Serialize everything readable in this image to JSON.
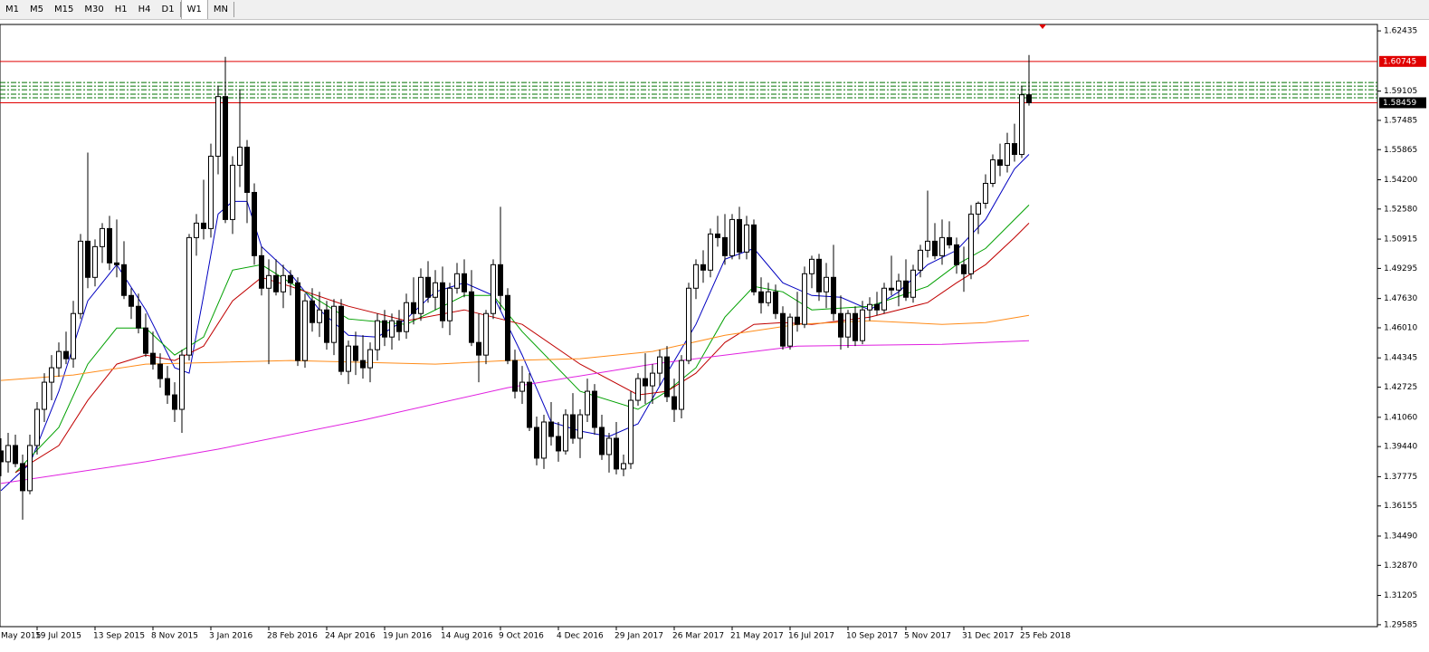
{
  "toolbar": {
    "timeframes": [
      "M1",
      "M5",
      "M15",
      "M30",
      "H1",
      "H4",
      "D1",
      "W1",
      "MN"
    ],
    "active": "W1"
  },
  "chart_data": {
    "type": "candlestick",
    "ylim": [
      1.2948,
      1.6279
    ],
    "yticks": [
      1.62435,
      1.59105,
      1.57485,
      1.55865,
      {
        "value": 1.542,
        "label": "1.54200"
      },
      {
        "value": 1.5258,
        "label": "1.52580"
      },
      1.50915,
      1.49295,
      {
        "value": 1.4763,
        "label": "1.47630"
      },
      {
        "value": 1.4601,
        "label": "1.46010"
      },
      1.44345,
      1.42725,
      {
        "value": 1.4106,
        "label": "1.41060"
      },
      {
        "value": 1.3944,
        "label": "1.39440"
      },
      1.37775,
      1.36155,
      {
        "value": 1.3449,
        "label": "1.34490"
      },
      {
        "value": 1.3287,
        "label": "1.32870"
      },
      1.31205,
      1.29585
    ],
    "xlim": [
      -0.125,
      190.125
    ],
    "xticks": [
      {
        "value": -3,
        "label": "May 2015"
      },
      {
        "value": 5,
        "label": "19 Jul 2015"
      },
      {
        "value": 13,
        "label": "13 Sep 2015"
      },
      {
        "value": 21,
        "label": "8 Nov 2015"
      },
      {
        "value": 29,
        "label": "3 Jan 2016"
      },
      {
        "value": 37,
        "label": "28 Feb 2016"
      },
      {
        "value": 45,
        "label": "24 Apr 2016"
      },
      {
        "value": 53,
        "label": "19 Jun 2016"
      },
      {
        "value": 61,
        "label": "14 Aug 2016"
      },
      {
        "value": 69,
        "label": "9 Oct 2016"
      },
      {
        "value": 77,
        "label": "4 Dec 2016"
      },
      {
        "value": 85,
        "label": "29 Jan 2017"
      },
      {
        "value": 93,
        "label": "26 Mar 2017"
      },
      {
        "value": 101,
        "label": "21 May 2017"
      },
      {
        "value": 109,
        "label": "16 Jul 2017"
      },
      {
        "value": 117,
        "label": "10 Sep 2017"
      },
      {
        "value": 125,
        "label": "5 Nov 2017"
      },
      {
        "value": 133,
        "label": "31 Dec 2017"
      },
      {
        "value": 141,
        "label": "25 Feb 2018"
      }
    ],
    "up_color": "#ffffff",
    "down_color": "#000000",
    "open": [
      1.392,
      1.386,
      1.395,
      1.385,
      1.37,
      1.395,
      1.415,
      1.43,
      1.438,
      1.447,
      1.443,
      1.468,
      1.508,
      1.488,
      1.505,
      1.515,
      1.496,
      1.495,
      1.478,
      1.472,
      1.46,
      1.446,
      1.44,
      1.432,
      1.423,
      1.415,
      1.445,
      1.51,
      1.518,
      1.515,
      1.555,
      1.588,
      1.52,
      1.55,
      1.56,
      1.535,
      1.5,
      1.482,
      1.489,
      1.48,
      1.489,
      1.485,
      1.442,
      1.475,
      1.463,
      1.47,
      1.452,
      1.472,
      1.436,
      1.45,
      1.442,
      1.438,
      1.448,
      1.464,
      1.455,
      1.464,
      1.458,
      1.474,
      1.468,
      1.488,
      1.477,
      1.485,
      1.464,
      1.482,
      1.49,
      1.48,
      1.452,
      1.445,
      1.468,
      1.495,
      1.478,
      1.442,
      1.425,
      1.43,
      1.405,
      1.388,
      1.408,
      1.4,
      1.392,
      1.412,
      1.399,
      1.412,
      1.425,
      1.405,
      1.39,
      1.399,
      1.382,
      1.385,
      1.42,
      1.432,
      1.428,
      1.435,
      1.444,
      1.422,
      1.415,
      1.442,
      1.482,
      1.495,
      1.492,
      1.512,
      1.51,
      1.5,
      1.52,
      1.502,
      1.517,
      1.48,
      1.474,
      1.48,
      1.468,
      1.45,
      1.466,
      1.462,
      1.49,
      1.498,
      1.48,
      1.488,
      1.468,
      1.455,
      1.468,
      1.453,
      1.47,
      1.473,
      1.47,
      1.482,
      1.481,
      1.486,
      1.477,
      1.492,
      1.503,
      1.508,
      1.5,
      1.51,
      1.506,
      1.495,
      1.49,
      1.523,
      1.529,
      1.54,
      1.553,
      1.55,
      1.562,
      1.556,
      1.589
    ],
    "high": [
      1.399,
      1.402,
      1.401,
      1.39,
      1.401,
      1.419,
      1.435,
      1.445,
      1.452,
      1.458,
      1.475,
      1.512,
      1.557,
      1.509,
      1.518,
      1.522,
      1.52,
      1.508,
      1.482,
      1.479,
      1.468,
      1.458,
      1.446,
      1.439,
      1.43,
      1.448,
      1.512,
      1.523,
      1.542,
      1.562,
      1.594,
      1.61,
      1.555,
      1.592,
      1.564,
      1.54,
      1.505,
      1.498,
      1.498,
      1.495,
      1.492,
      1.488,
      1.479,
      1.482,
      1.48,
      1.475,
      1.476,
      1.476,
      1.453,
      1.458,
      1.456,
      1.452,
      1.468,
      1.47,
      1.468,
      1.47,
      1.479,
      1.488,
      1.493,
      1.497,
      1.492,
      1.494,
      1.485,
      1.496,
      1.498,
      1.492,
      1.468,
      1.47,
      1.498,
      1.527,
      1.482,
      1.448,
      1.439,
      1.435,
      1.411,
      1.412,
      1.419,
      1.408,
      1.415,
      1.424,
      1.415,
      1.432,
      1.429,
      1.412,
      1.402,
      1.408,
      1.39,
      1.425,
      1.435,
      1.446,
      1.44,
      1.448,
      1.45,
      1.432,
      1.445,
      1.485,
      1.498,
      1.503,
      1.515,
      1.522,
      1.523,
      1.523,
      1.527,
      1.522,
      1.52,
      1.488,
      1.485,
      1.484,
      1.472,
      1.468,
      1.48,
      1.494,
      1.5,
      1.501,
      1.496,
      1.506,
      1.478,
      1.47,
      1.472,
      1.475,
      1.477,
      1.48,
      1.485,
      1.5,
      1.49,
      1.498,
      1.495,
      1.506,
      1.536,
      1.518,
      1.52,
      1.519,
      1.51,
      1.505,
      1.528,
      1.53,
      1.545,
      1.556,
      1.562,
      1.568,
      1.573,
      1.594,
      1.611
    ],
    "low": [
      1.378,
      1.38,
      1.383,
      1.354,
      1.368,
      1.39,
      1.408,
      1.42,
      1.433,
      1.44,
      1.438,
      1.465,
      1.482,
      1.483,
      1.496,
      1.492,
      1.488,
      1.476,
      1.465,
      1.457,
      1.444,
      1.437,
      1.427,
      1.418,
      1.408,
      1.402,
      1.442,
      1.5,
      1.509,
      1.51,
      1.545,
      1.518,
      1.512,
      1.538,
      1.518,
      1.495,
      1.478,
      1.44,
      1.478,
      1.471,
      1.478,
      1.439,
      1.438,
      1.458,
      1.455,
      1.448,
      1.445,
      1.434,
      1.429,
      1.434,
      1.432,
      1.43,
      1.442,
      1.45,
      1.448,
      1.453,
      1.454,
      1.462,
      1.464,
      1.474,
      1.47,
      1.46,
      1.456,
      1.479,
      1.477,
      1.45,
      1.43,
      1.44,
      1.465,
      1.47,
      1.44,
      1.421,
      1.418,
      1.403,
      1.384,
      1.382,
      1.395,
      1.386,
      1.39,
      1.396,
      1.388,
      1.408,
      1.401,
      1.387,
      1.38,
      1.379,
      1.378,
      1.382,
      1.417,
      1.418,
      1.418,
      1.428,
      1.419,
      1.408,
      1.41,
      1.44,
      1.476,
      1.485,
      1.488,
      1.505,
      1.495,
      1.498,
      1.498,
      1.498,
      1.478,
      1.468,
      1.472,
      1.465,
      1.448,
      1.448,
      1.458,
      1.46,
      1.482,
      1.475,
      1.471,
      1.464,
      1.448,
      1.449,
      1.45,
      1.451,
      1.464,
      1.467,
      1.468,
      1.478,
      1.472,
      1.475,
      1.474,
      1.488,
      1.499,
      1.498,
      1.495,
      1.504,
      1.49,
      1.48,
      1.487,
      1.512,
      1.526,
      1.538,
      1.544,
      1.546,
      1.552,
      1.554,
      1.583
    ],
    "close": [
      1.386,
      1.395,
      1.385,
      1.37,
      1.395,
      1.415,
      1.43,
      1.438,
      1.447,
      1.443,
      1.468,
      1.508,
      1.488,
      1.505,
      1.515,
      1.496,
      1.495,
      1.478,
      1.472,
      1.46,
      1.446,
      1.44,
      1.432,
      1.423,
      1.415,
      1.445,
      1.51,
      1.518,
      1.515,
      1.555,
      1.588,
      1.52,
      1.55,
      1.56,
      1.535,
      1.5,
      1.482,
      1.489,
      1.48,
      1.489,
      1.485,
      1.442,
      1.475,
      1.463,
      1.47,
      1.452,
      1.472,
      1.436,
      1.45,
      1.442,
      1.438,
      1.448,
      1.464,
      1.455,
      1.464,
      1.458,
      1.474,
      1.468,
      1.488,
      1.477,
      1.485,
      1.464,
      1.482,
      1.49,
      1.48,
      1.452,
      1.445,
      1.468,
      1.495,
      1.478,
      1.442,
      1.425,
      1.43,
      1.405,
      1.388,
      1.408,
      1.4,
      1.392,
      1.412,
      1.399,
      1.412,
      1.425,
      1.405,
      1.39,
      1.399,
      1.382,
      1.385,
      1.42,
      1.432,
      1.428,
      1.435,
      1.444,
      1.422,
      1.415,
      1.442,
      1.482,
      1.495,
      1.492,
      1.512,
      1.51,
      1.5,
      1.52,
      1.502,
      1.517,
      1.48,
      1.474,
      1.48,
      1.468,
      1.45,
      1.466,
      1.462,
      1.49,
      1.498,
      1.48,
      1.488,
      1.468,
      1.455,
      1.468,
      1.453,
      1.47,
      1.473,
      1.47,
      1.482,
      1.481,
      1.486,
      1.477,
      1.492,
      1.503,
      1.508,
      1.5,
      1.51,
      1.506,
      1.495,
      1.49,
      1.523,
      1.529,
      1.54,
      1.553,
      1.55,
      1.562,
      1.556,
      1.589,
      1.58459
    ],
    "lines": [
      {
        "color": "#0000c0",
        "x": [
          0,
          4,
          8,
          12,
          16,
          20,
          24,
          26,
          28,
          30,
          32,
          34,
          36,
          40,
          44,
          48,
          52,
          56,
          60,
          64,
          68,
          72,
          76,
          80,
          84,
          88,
          92,
          96,
          100,
          104,
          108,
          112,
          116,
          120,
          124,
          128,
          132,
          136,
          140,
          142
        ],
        "values": [
          1.37,
          1.385,
          1.425,
          1.475,
          1.495,
          1.47,
          1.438,
          1.435,
          1.478,
          1.523,
          1.53,
          1.53,
          1.505,
          1.49,
          1.47,
          1.456,
          1.455,
          1.465,
          1.48,
          1.485,
          1.478,
          1.445,
          1.408,
          1.403,
          1.4,
          1.407,
          1.435,
          1.462,
          1.498,
          1.504,
          1.485,
          1.478,
          1.477,
          1.47,
          1.48,
          1.495,
          1.503,
          1.52,
          1.548,
          1.556
        ]
      },
      {
        "color": "#00a000",
        "x": [
          2,
          8,
          12,
          16,
          20,
          24,
          28,
          32,
          36,
          40,
          48,
          56,
          64,
          68,
          72,
          80,
          88,
          92,
          96,
          100,
          104,
          108,
          112,
          120,
          128,
          132,
          136,
          140,
          142
        ],
        "values": [
          1.38,
          1.405,
          1.44,
          1.46,
          1.46,
          1.445,
          1.455,
          1.492,
          1.495,
          1.485,
          1.465,
          1.462,
          1.478,
          1.478,
          1.458,
          1.425,
          1.415,
          1.425,
          1.438,
          1.466,
          1.483,
          1.48,
          1.47,
          1.472,
          1.483,
          1.495,
          1.504,
          1.52,
          1.528
        ]
      },
      {
        "color": "#c00000",
        "x": [
          2,
          8,
          12,
          16,
          20,
          24,
          28,
          32,
          36,
          40,
          48,
          56,
          64,
          72,
          80,
          88,
          92,
          96,
          100,
          104,
          108,
          112,
          120,
          128,
          132,
          136,
          140,
          142
        ],
        "values": [
          1.38,
          1.395,
          1.42,
          1.44,
          1.445,
          1.442,
          1.45,
          1.475,
          1.488,
          1.483,
          1.472,
          1.464,
          1.47,
          1.462,
          1.44,
          1.423,
          1.425,
          1.435,
          1.452,
          1.462,
          1.463,
          1.462,
          1.466,
          1.474,
          1.485,
          1.495,
          1.51,
          1.518
        ]
      },
      {
        "color": "#ff8c1a",
        "x": [
          0,
          10,
          20,
          30,
          40,
          60,
          70,
          80,
          90,
          100,
          110,
          120,
          130,
          136,
          142
        ],
        "values": [
          1.431,
          1.434,
          1.44,
          1.441,
          1.442,
          1.44,
          1.442,
          1.443,
          1.447,
          1.456,
          1.462,
          1.464,
          1.462,
          1.463,
          1.467
        ]
      },
      {
        "color": "#e020e0",
        "x": [
          0,
          20,
          30,
          50,
          70,
          90,
          110,
          130,
          142
        ],
        "values": [
          1.374,
          1.386,
          1.393,
          1.409,
          1.427,
          1.44,
          1.45,
          1.451,
          1.453
        ]
      }
    ],
    "hlines": [
      {
        "value": 1.60745,
        "color": "#e00000"
      },
      {
        "value": 1.58459,
        "color": "#e00000"
      }
    ],
    "dash_lines": {
      "color": "#007000",
      "values": [
        1.5958,
        1.5938,
        1.5918,
        1.5893,
        1.5873
      ]
    }
  }
}
